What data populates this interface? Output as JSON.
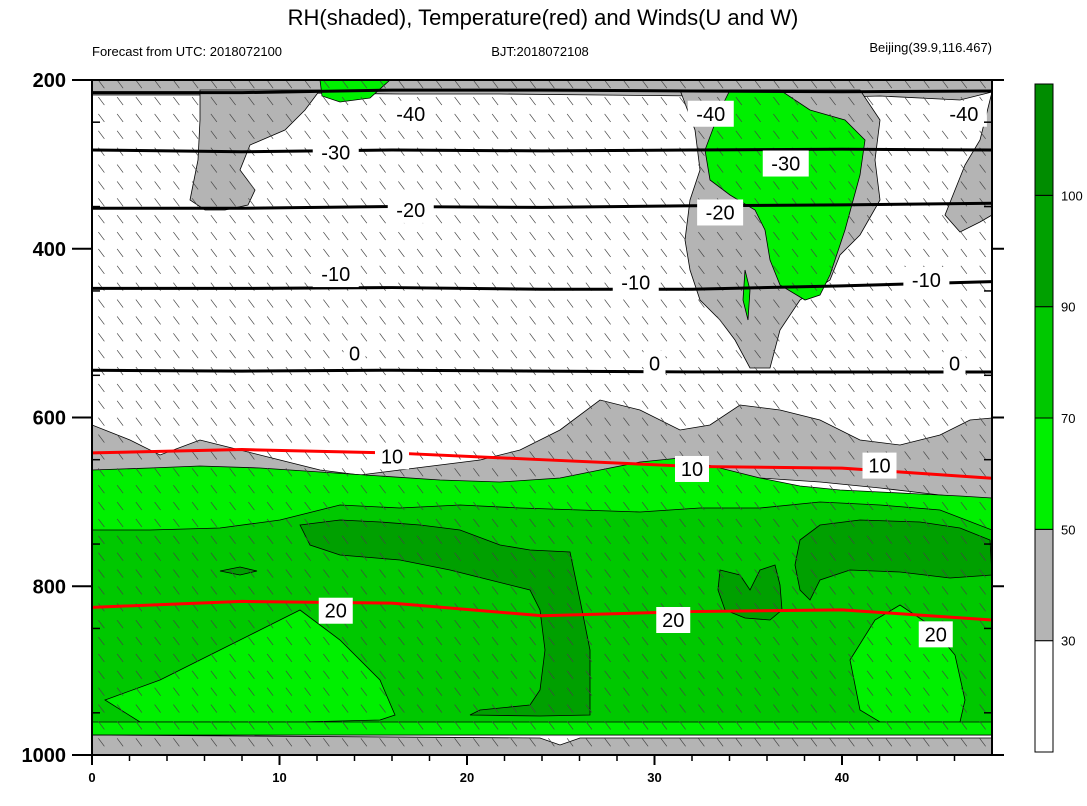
{
  "chart_data": {
    "type": "contour",
    "title": "RH(shaded), Temperature(red) and Winds(U and W)",
    "subtitle_left": "Forecast from UTC: 2018072100",
    "subtitle_center": "BJT:2018072108",
    "subtitle_right": "Beijing(39.9,116.467)",
    "x_axis": {
      "range": [
        0,
        48
      ],
      "ticks": [
        0,
        10,
        20,
        30,
        40
      ],
      "tick_labels": [
        "0",
        "10",
        "20",
        "30",
        "40"
      ]
    },
    "y_axis": {
      "range": [
        200,
        1000
      ],
      "inverted": true,
      "ticks": [
        200,
        400,
        600,
        800,
        1000
      ],
      "tick_labels": [
        "200",
        "400",
        "600",
        "800",
        "1000"
      ]
    },
    "colorbar": {
      "levels": [
        30,
        50,
        70,
        90,
        100
      ],
      "labels": [
        "30",
        "50",
        "70",
        "90",
        "100"
      ],
      "colors": [
        "#ffffff",
        "#b4b4b4",
        "#00f000",
        "#00c800",
        "#00a000",
        "#008c00"
      ]
    },
    "temperature_contours": [
      {
        "value": -40,
        "label": "-40",
        "color": "#000000",
        "pressure": [
          215,
          215,
          212,
          212,
          213,
          214,
          213
        ]
      },
      {
        "value": -30,
        "label": "-30",
        "color": "#000000",
        "pressure": [
          283,
          285,
          283,
          284,
          283,
          282,
          283
        ]
      },
      {
        "value": -20,
        "label": "-20",
        "color": "#000000",
        "pressure": [
          352,
          352,
          350,
          351,
          349,
          348,
          346
        ]
      },
      {
        "value": -10,
        "label": "-10",
        "color": "#000000",
        "pressure": [
          447,
          447,
          446,
          448,
          448,
          444,
          439
        ]
      },
      {
        "value": 0,
        "label": "0",
        "color": "#000000",
        "pressure": [
          544,
          545,
          544,
          545,
          546,
          546,
          546
        ]
      },
      {
        "value": 10,
        "label": "10",
        "color": "#ff0000",
        "pressure": [
          642,
          638,
          642,
          650,
          658,
          660,
          672
        ]
      },
      {
        "value": 20,
        "label": "20",
        "color": "#ff0000",
        "pressure": [
          825,
          818,
          820,
          835,
          830,
          828,
          840
        ]
      }
    ],
    "temperature_labels": [
      {
        "text": "-40",
        "x": 17,
        "p": 240
      },
      {
        "text": "-40",
        "x": 33,
        "p": 240
      },
      {
        "text": "-40",
        "x": 46.5,
        "p": 240
      },
      {
        "text": "-30",
        "x": 13,
        "p": 286
      },
      {
        "text": "-30",
        "x": 37,
        "p": 299
      },
      {
        "text": "-20",
        "x": 17,
        "p": 354
      },
      {
        "text": "-20",
        "x": 33.5,
        "p": 357
      },
      {
        "text": "-10",
        "x": 13,
        "p": 430
      },
      {
        "text": "-10",
        "x": 29,
        "p": 440
      },
      {
        "text": "-10",
        "x": 44.5,
        "p": 437
      },
      {
        "text": "0",
        "x": 14,
        "p": 524
      },
      {
        "text": "0",
        "x": 30,
        "p": 536
      },
      {
        "text": "0",
        "x": 46,
        "p": 536
      },
      {
        "text": "10",
        "x": 16,
        "p": 646
      },
      {
        "text": "10",
        "x": 32,
        "p": 661
      },
      {
        "text": "10",
        "x": 42,
        "p": 657
      },
      {
        "text": "20",
        "x": 13,
        "p": 829
      },
      {
        "text": "20",
        "x": 31,
        "p": 840
      },
      {
        "text": "20",
        "x": 45,
        "p": 857
      }
    ]
  }
}
